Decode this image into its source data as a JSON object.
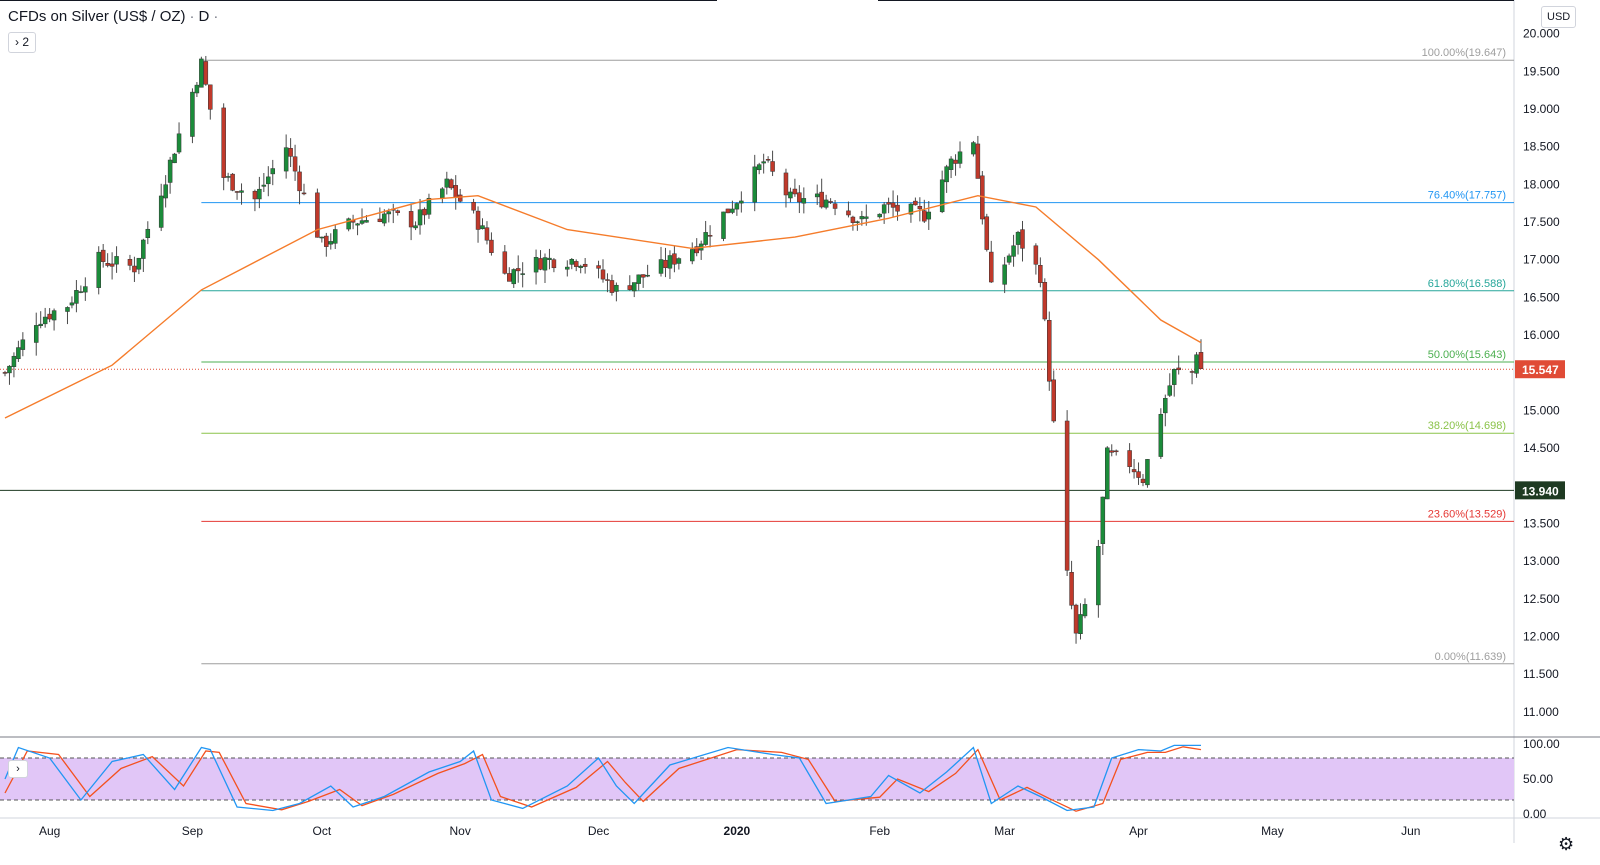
{
  "header": {
    "symbol": "CFDs on Silver (US$ / OZ)",
    "interval": "D",
    "collapse_label": "2",
    "currency": "USD"
  },
  "colors": {
    "up": "#26a69a",
    "up_body": "#1b8c3a",
    "down": "#c0392b",
    "ma": "#f57c2b",
    "stoch_k": "#2196f3",
    "stoch_d": "#f4511e",
    "stoch_band": "#e1c6f7",
    "last_price_bg": "#e04b36",
    "level_bg": "#1e3a22"
  },
  "chart_data": {
    "type": "candlestick",
    "x_tick_labels": [
      "Aug",
      "Sep",
      "Oct",
      "Nov",
      "Dec",
      "2020",
      "Feb",
      "Mar",
      "Apr",
      "May",
      "Jun"
    ],
    "y_tick_labels": [
      "11.000",
      "11.500",
      "12.000",
      "12.500",
      "13.000",
      "13.500",
      "14.000",
      "14.500",
      "15.000",
      "15.500",
      "16.000",
      "16.500",
      "17.000",
      "17.500",
      "18.000",
      "18.500",
      "19.000",
      "19.500",
      "20.000"
    ],
    "ylim": [
      10.8,
      20.3
    ],
    "last_price": "15.547",
    "marked_level": "13.940",
    "fibonacci_levels": [
      {
        "label": "100.00%(19.647)",
        "value": 19.647,
        "color": "#9e9e9e"
      },
      {
        "label": "76.40%(17.757)",
        "value": 17.757,
        "color": "#2196f3"
      },
      {
        "label": "61.80%(16.588)",
        "value": 16.588,
        "color": "#26a69a"
      },
      {
        "label": "50.00%(15.643)",
        "value": 15.643,
        "color": "#4caf50"
      },
      {
        "label": "38.20%(14.698)",
        "value": 14.698,
        "color": "#8bc34a"
      },
      {
        "label": "23.60%(13.529)",
        "value": 13.529,
        "color": "#e53935"
      },
      {
        "label": "0.00%(11.639)",
        "value": 11.639,
        "color": "#9e9e9e"
      }
    ],
    "month_starts": [
      "2019-08-01",
      "2019-09-02",
      "2019-10-01",
      "2019-11-01",
      "2019-12-02",
      "2020-01-02",
      "2020-02-03",
      "2020-03-02",
      "2020-04-01",
      "2020-05-01",
      "2020-06-01"
    ],
    "close_anchors": [
      [
        "2019-07-22",
        15.5
      ],
      [
        "2019-07-29",
        16.2
      ],
      [
        "2019-08-05",
        16.4
      ],
      [
        "2019-08-12",
        17.0
      ],
      [
        "2019-08-20",
        16.9
      ],
      [
        "2019-08-27",
        18.1
      ],
      [
        "2019-09-04",
        19.6
      ],
      [
        "2019-09-09",
        18.1
      ],
      [
        "2019-09-16",
        17.8
      ],
      [
        "2019-09-23",
        18.5
      ],
      [
        "2019-10-01",
        17.2
      ],
      [
        "2019-10-08",
        17.5
      ],
      [
        "2019-10-15",
        17.6
      ],
      [
        "2019-10-22",
        17.5
      ],
      [
        "2019-10-29",
        18.0
      ],
      [
        "2019-11-05",
        17.5
      ],
      [
        "2019-11-11",
        16.8
      ],
      [
        "2019-11-20",
        17.0
      ],
      [
        "2019-11-28",
        17.0
      ],
      [
        "2019-12-06",
        16.6
      ],
      [
        "2019-12-16",
        16.9
      ],
      [
        "2019-12-24",
        17.2
      ],
      [
        "2020-01-02",
        17.8
      ],
      [
        "2020-01-08",
        18.3
      ],
      [
        "2020-01-14",
        17.8
      ],
      [
        "2020-01-23",
        17.8
      ],
      [
        "2020-01-30",
        17.5
      ],
      [
        "2020-02-04",
        17.7
      ],
      [
        "2020-02-13",
        17.6
      ],
      [
        "2020-02-19",
        18.3
      ],
      [
        "2020-02-24",
        18.6
      ],
      [
        "2020-02-28",
        16.6
      ],
      [
        "2020-03-05",
        17.3
      ],
      [
        "2020-03-10",
        16.8
      ],
      [
        "2020-03-13",
        14.8
      ],
      [
        "2020-03-16",
        12.8
      ],
      [
        "2020-03-18",
        12.0
      ],
      [
        "2020-03-20",
        12.4
      ],
      [
        "2020-03-23",
        13.2
      ],
      [
        "2020-03-25",
        14.4
      ],
      [
        "2020-03-30",
        14.3
      ],
      [
        "2020-04-02",
        14.1
      ],
      [
        "2020-04-06",
        15.0
      ],
      [
        "2020-04-09",
        15.5
      ],
      [
        "2020-04-13",
        15.5
      ],
      [
        "2020-04-14",
        15.8
      ],
      [
        "2020-04-15",
        15.55
      ]
    ],
    "moving_average": {
      "color": "#f57c2b",
      "points": [
        [
          "2019-07-22",
          14.9
        ],
        [
          "2019-08-15",
          15.6
        ],
        [
          "2019-09-04",
          16.6
        ],
        [
          "2019-09-30",
          17.4
        ],
        [
          "2019-10-25",
          17.8
        ],
        [
          "2019-11-05",
          17.85
        ],
        [
          "2019-11-25",
          17.4
        ],
        [
          "2019-12-23",
          17.15
        ],
        [
          "2020-01-15",
          17.3
        ],
        [
          "2020-02-05",
          17.55
        ],
        [
          "2020-02-25",
          17.85
        ],
        [
          "2020-03-09",
          17.7
        ],
        [
          "2020-03-23",
          17.0
        ],
        [
          "2020-04-06",
          16.2
        ],
        [
          "2020-04-15",
          15.9
        ]
      ]
    },
    "stochastic": {
      "y_tick_labels": [
        "0.00",
        "50.00",
        "100.00"
      ],
      "upper_band": 80,
      "lower_band": 20,
      "k_points": [
        [
          "2019-07-22",
          50
        ],
        [
          "2019-07-25",
          95
        ],
        [
          "2019-08-01",
          80
        ],
        [
          "2019-08-08",
          20
        ],
        [
          "2019-08-15",
          75
        ],
        [
          "2019-08-22",
          85
        ],
        [
          "2019-08-29",
          35
        ],
        [
          "2019-09-04",
          95
        ],
        [
          "2019-09-06",
          92
        ],
        [
          "2019-09-12",
          10
        ],
        [
          "2019-09-20",
          5
        ],
        [
          "2019-09-26",
          15
        ],
        [
          "2019-10-03",
          40
        ],
        [
          "2019-10-08",
          10
        ],
        [
          "2019-10-15",
          25
        ],
        [
          "2019-10-25",
          60
        ],
        [
          "2019-11-01",
          75
        ],
        [
          "2019-11-04",
          90
        ],
        [
          "2019-11-08",
          20
        ],
        [
          "2019-11-15",
          8
        ],
        [
          "2019-11-25",
          40
        ],
        [
          "2019-12-02",
          80
        ],
        [
          "2019-12-06",
          40
        ],
        [
          "2019-12-10",
          15
        ],
        [
          "2019-12-18",
          70
        ],
        [
          "2019-12-31",
          95
        ],
        [
          "2020-01-10",
          85
        ],
        [
          "2020-01-16",
          80
        ],
        [
          "2020-01-22",
          15
        ],
        [
          "2020-02-01",
          25
        ],
        [
          "2020-02-05",
          55
        ],
        [
          "2020-02-12",
          30
        ],
        [
          "2020-02-18",
          60
        ],
        [
          "2020-02-24",
          95
        ],
        [
          "2020-02-28",
          15
        ],
        [
          "2020-03-05",
          40
        ],
        [
          "2020-03-10",
          25
        ],
        [
          "2020-03-16",
          5
        ],
        [
          "2020-03-22",
          10
        ],
        [
          "2020-03-26",
          80
        ],
        [
          "2020-04-01",
          92
        ],
        [
          "2020-04-06",
          90
        ],
        [
          "2020-04-09",
          98
        ],
        [
          "2020-04-15",
          98
        ]
      ],
      "d_points": [
        [
          "2019-07-22",
          30
        ],
        [
          "2019-07-27",
          90
        ],
        [
          "2019-08-03",
          85
        ],
        [
          "2019-08-10",
          25
        ],
        [
          "2019-08-17",
          65
        ],
        [
          "2019-08-24",
          82
        ],
        [
          "2019-08-31",
          40
        ],
        [
          "2019-09-05",
          90
        ],
        [
          "2019-09-08",
          88
        ],
        [
          "2019-09-14",
          15
        ],
        [
          "2019-09-22",
          6
        ],
        [
          "2019-09-28",
          18
        ],
        [
          "2019-10-05",
          35
        ],
        [
          "2019-10-10",
          12
        ],
        [
          "2019-10-17",
          28
        ],
        [
          "2019-10-27",
          58
        ],
        [
          "2019-11-02",
          72
        ],
        [
          "2019-11-06",
          85
        ],
        [
          "2019-11-10",
          25
        ],
        [
          "2019-11-17",
          10
        ],
        [
          "2019-11-27",
          38
        ],
        [
          "2019-12-04",
          75
        ],
        [
          "2019-12-08",
          45
        ],
        [
          "2019-12-12",
          18
        ],
        [
          "2019-12-20",
          65
        ],
        [
          "2020-01-02",
          92
        ],
        [
          "2020-01-12",
          88
        ],
        [
          "2020-01-18",
          78
        ],
        [
          "2020-01-24",
          18
        ],
        [
          "2020-02-03",
          24
        ],
        [
          "2020-02-07",
          50
        ],
        [
          "2020-02-14",
          32
        ],
        [
          "2020-02-20",
          58
        ],
        [
          "2020-02-25",
          92
        ],
        [
          "2020-03-01",
          20
        ],
        [
          "2020-03-07",
          38
        ],
        [
          "2020-03-12",
          22
        ],
        [
          "2020-03-18",
          4
        ],
        [
          "2020-03-24",
          15
        ],
        [
          "2020-03-28",
          78
        ],
        [
          "2020-04-03",
          88
        ],
        [
          "2020-04-07",
          88
        ],
        [
          "2020-04-11",
          96
        ],
        [
          "2020-04-15",
          92
        ]
      ]
    }
  }
}
